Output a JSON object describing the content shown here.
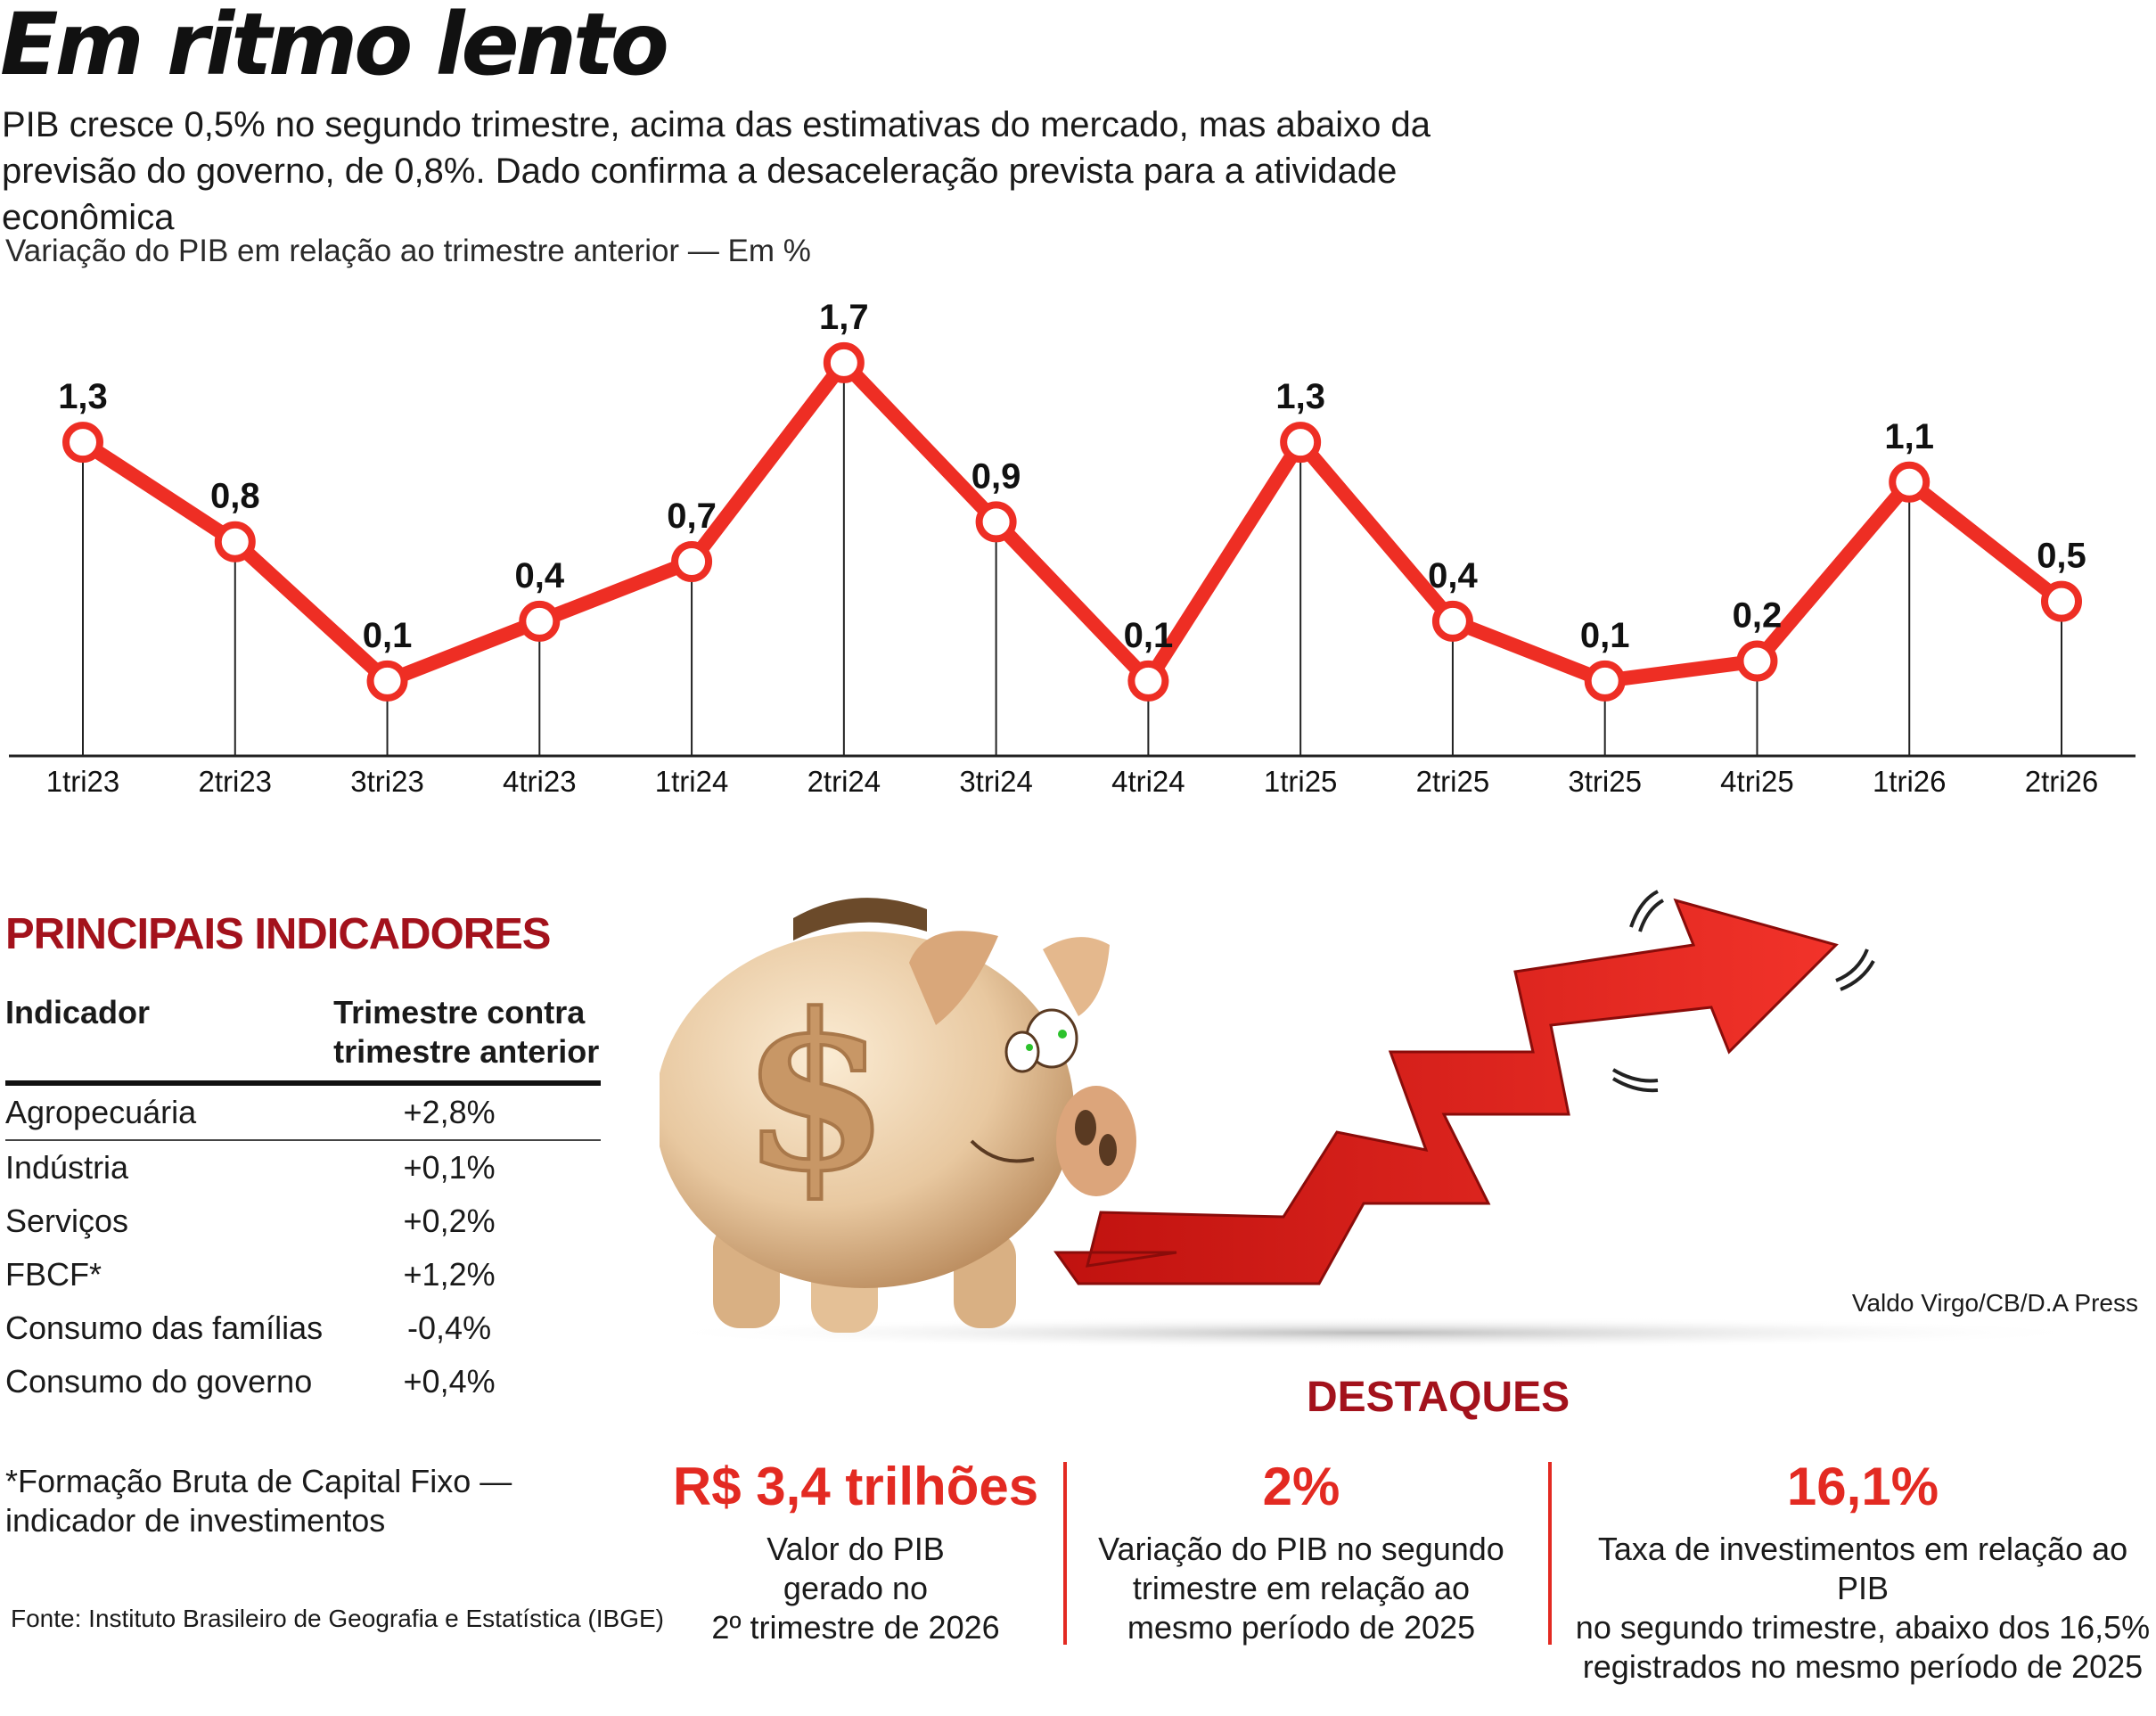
{
  "header": {
    "title": "Em ritmo lento",
    "subtitle": "PIB cresce 0,5% no segundo trimestre, acima das estimativas do mercado, mas abaixo da previsão do governo, de 0,8%. Dado confirma a desaceleração prevista para a atividade econômica"
  },
  "chart_data": {
    "type": "line",
    "title": "Variação do PIB em relação ao trimestre anterior — Em %",
    "categories": [
      "1tri23",
      "2tri23",
      "3tri23",
      "4tri23",
      "1tri24",
      "2tri24",
      "3tri24",
      "4tri24",
      "1tri25",
      "2tri25",
      "3tri25",
      "4tri25",
      "1tri26",
      "2tri26"
    ],
    "values": [
      1.3,
      0.8,
      0.1,
      0.4,
      0.7,
      1.7,
      0.9,
      0.1,
      1.3,
      0.4,
      0.1,
      0.2,
      1.1,
      0.5
    ],
    "labels": [
      "1,3",
      "0,8",
      "0,1",
      "0,4",
      "0,7",
      "1,7",
      "0,9",
      "0,1",
      "1,3",
      "0,4",
      "0,1",
      "0,2",
      "1,1",
      "0,5"
    ],
    "ylim": [
      -0.6,
      2.0
    ],
    "grid": false,
    "legend": "none",
    "colors": {
      "line": "#ee2e24",
      "marker_fill": "#ffffff",
      "axis": "#222222"
    }
  },
  "indicators": {
    "title": "PRINCIPAIS INDICADORES",
    "headers": [
      "Indicador",
      "Trimestre contra",
      "trimestre anterior"
    ],
    "rows": [
      {
        "name": "Agropecuária",
        "value": "+2,8%"
      },
      {
        "name": "Indústria",
        "value": "+0,1%"
      },
      {
        "name": "Serviços",
        "value": "+0,2%"
      },
      {
        "name": "FBCF*",
        "value": "+1,2%"
      },
      {
        "name": "Consumo das famílias",
        "value": "-0,4%"
      },
      {
        "name": "Consumo do governo",
        "value": "+0,4%"
      }
    ],
    "footnote_line1": "*Formação Bruta de Capital Fixo —",
    "footnote_line2": "indicador de investimentos",
    "source": "Fonte: Instituto Brasileiro de Geografia e Estatística (IBGE)"
  },
  "illustration": {
    "credit": "Valdo Virgo/CB/D.A Press",
    "dollar_sign": "$",
    "colors": {
      "piggy": "#e8c8a0",
      "arrow": "#e8231e",
      "accent_red": "#a3121c"
    }
  },
  "highlights": {
    "title": "DESTAQUES",
    "items": [
      {
        "value": "R$ 3,4 trilhões",
        "line1": "Valor do PIB",
        "line2": "gerado no",
        "line3": "2º trimestre de 2026"
      },
      {
        "value": "2%",
        "line1": "Variação do PIB no segundo",
        "line2": "trimestre em relação ao",
        "line3": "mesmo período de 2025"
      },
      {
        "value": "16,1%",
        "line1": "Taxa de investimentos em relação ao PIB",
        "line2": "no segundo trimestre, abaixo dos 16,5%",
        "line3": "registrados no mesmo período de 2025"
      }
    ]
  }
}
